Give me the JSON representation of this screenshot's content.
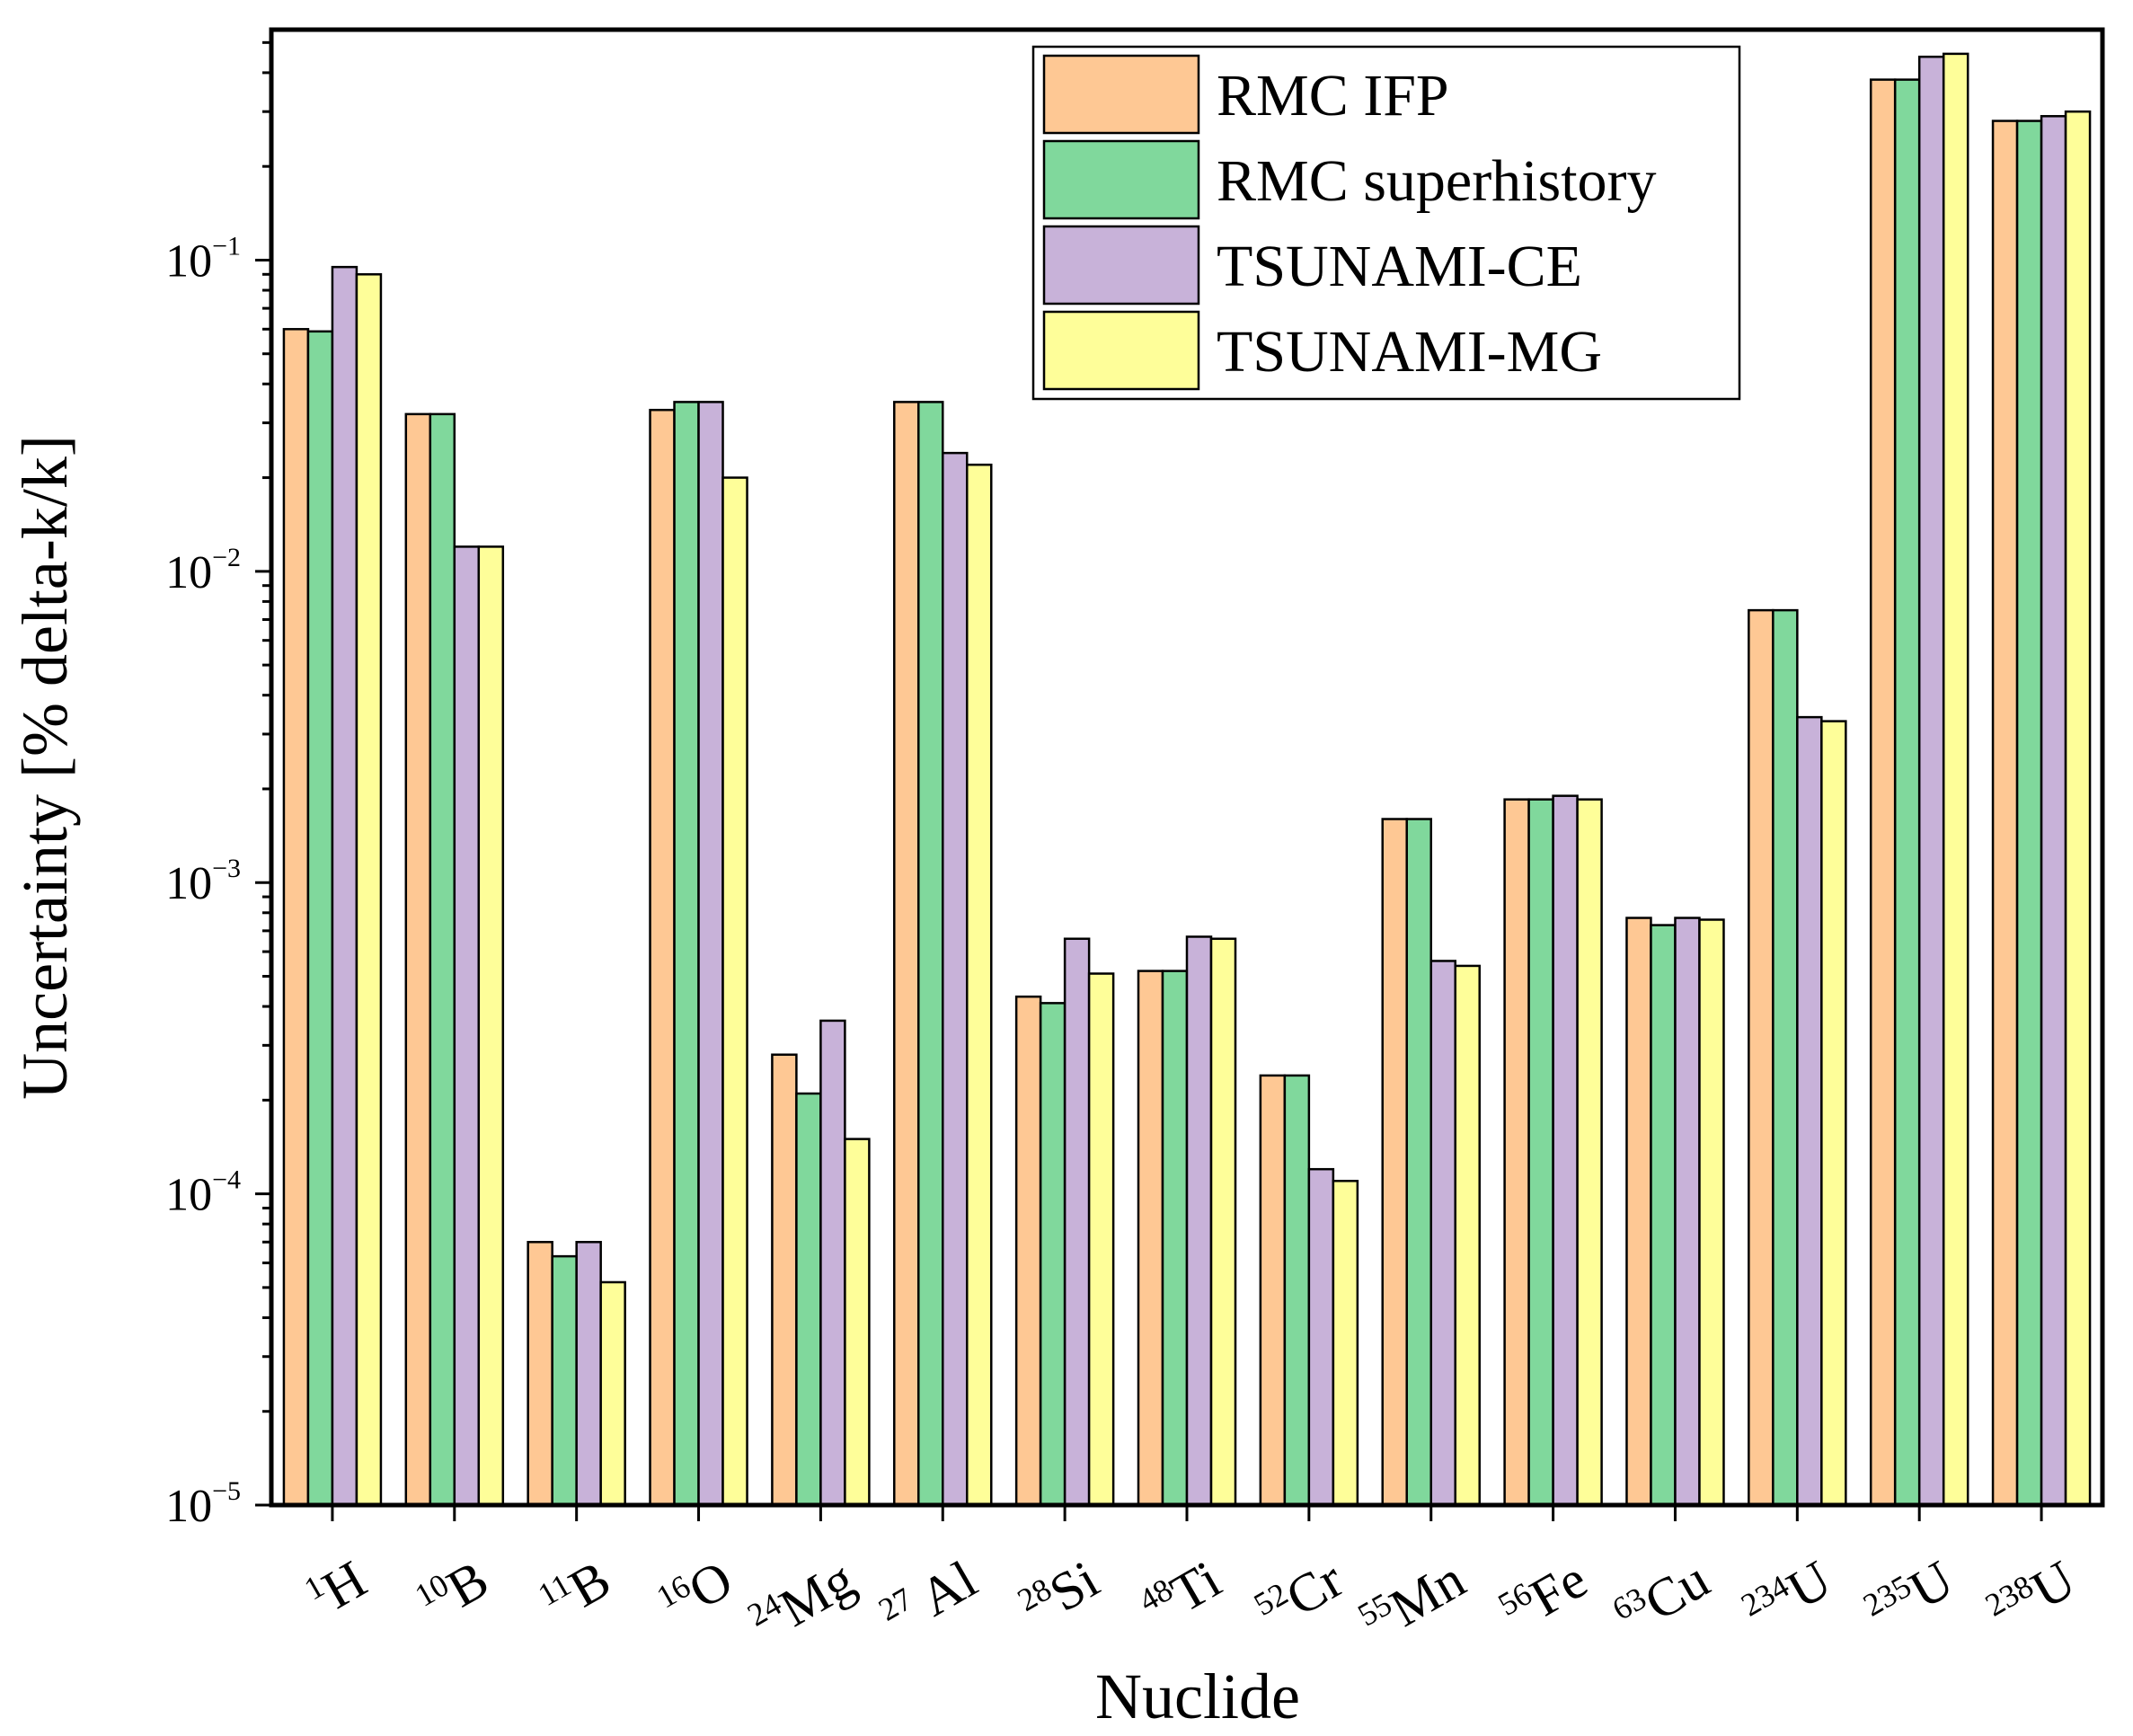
{
  "chart_data": {
    "type": "bar",
    "scale": "log",
    "xlabel": "Nuclide",
    "ylabel": "Uncertainty [% delta-k/k]",
    "ylim": [
      1e-05,
      0.55
    ],
    "y_ticks": [
      {
        "base": "10",
        "exp": "−5",
        "value": 1e-05
      },
      {
        "base": "10",
        "exp": "−4",
        "value": 0.0001
      },
      {
        "base": "10",
        "exp": "−3",
        "value": 0.001
      },
      {
        "base": "10",
        "exp": "−2",
        "value": 0.01
      },
      {
        "base": "10",
        "exp": "−1",
        "value": 0.1
      }
    ],
    "categories": [
      {
        "sup": "1",
        "sym": "H"
      },
      {
        "sup": "10",
        "sym": "B"
      },
      {
        "sup": "11",
        "sym": "B"
      },
      {
        "sup": "16",
        "sym": "O"
      },
      {
        "sup": "24",
        "sym": "Mg"
      },
      {
        "sup": "27",
        "sym": " Al"
      },
      {
        "sup": "28",
        "sym": "Si"
      },
      {
        "sup": "48",
        "sym": "Ti"
      },
      {
        "sup": "52",
        "sym": "Cr"
      },
      {
        "sup": "55",
        "sym": "Mn"
      },
      {
        "sup": "56",
        "sym": "Fe"
      },
      {
        "sup": "63",
        "sym": "Cu"
      },
      {
        "sup": "234",
        "sym": "U"
      },
      {
        "sup": "235",
        "sym": "U"
      },
      {
        "sup": "238",
        "sym": "U"
      }
    ],
    "series": [
      {
        "name": "RMC IFP",
        "color": "#FEC894",
        "values": [
          0.06,
          0.032,
          7e-05,
          0.033,
          0.00028,
          0.035,
          0.00043,
          0.00052,
          0.00024,
          0.0016,
          0.00185,
          0.00077,
          0.0075,
          0.38,
          0.28
        ]
      },
      {
        "name": "RMC superhistory",
        "color": "#80D89C",
        "values": [
          0.059,
          0.032,
          6.3e-05,
          0.035,
          0.00021,
          0.035,
          0.00041,
          0.00052,
          0.00024,
          0.0016,
          0.00185,
          0.00073,
          0.0075,
          0.38,
          0.28
        ]
      },
      {
        "name": "TSUNAMI-CE",
        "color": "#C8B2D9",
        "values": [
          0.095,
          0.012,
          7e-05,
          0.035,
          0.00036,
          0.024,
          0.00066,
          0.00067,
          0.00012,
          0.00056,
          0.0019,
          0.00077,
          0.0034,
          0.45,
          0.29
        ]
      },
      {
        "name": "TSUNAMI-MG",
        "color": "#FEFE99",
        "values": [
          0.09,
          0.012,
          5.2e-05,
          0.02,
          0.00015,
          0.022,
          0.00051,
          0.00066,
          0.00011,
          0.00054,
          0.00185,
          0.00076,
          0.0033,
          0.46,
          0.3
        ]
      }
    ],
    "legend_position": "top-right",
    "grid": false
  }
}
